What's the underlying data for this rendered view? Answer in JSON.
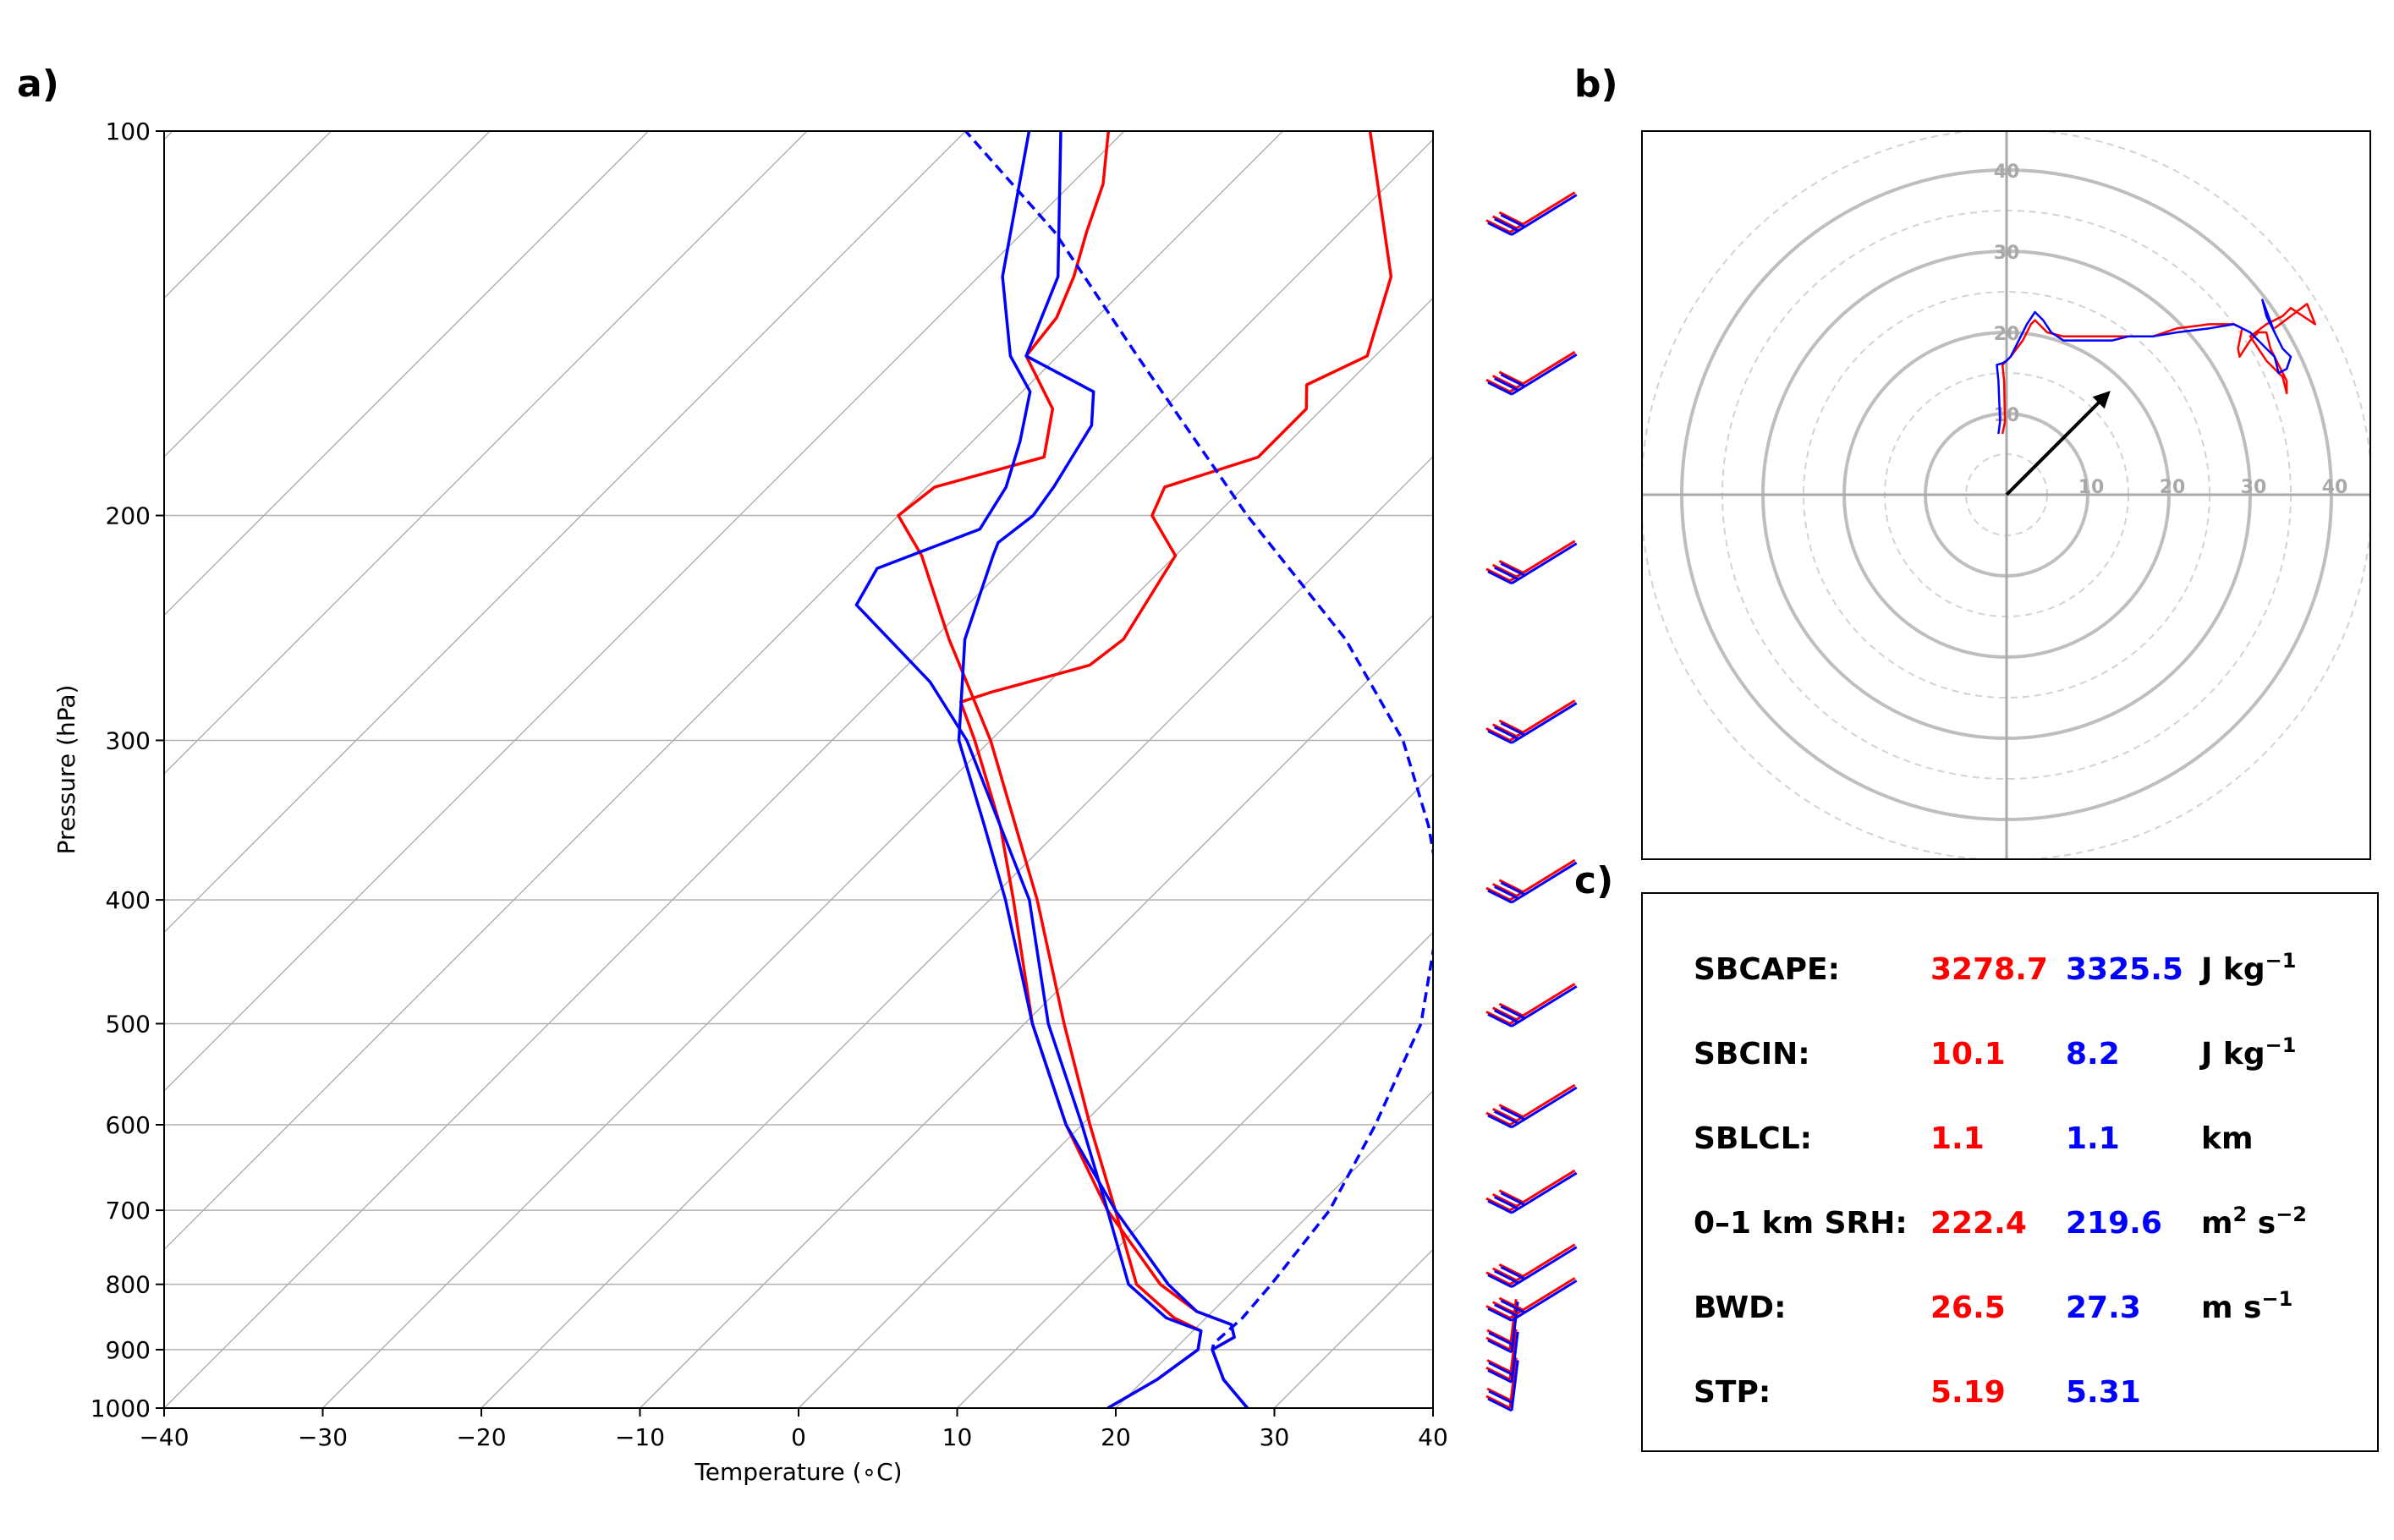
{
  "panels": {
    "a": "a)",
    "b": "b)",
    "c": "c)"
  },
  "colors": {
    "red": "#ff0000",
    "blue": "#0000ff",
    "grid": "#b0b0b0",
    "hodo_grid": "#a9a9a9"
  },
  "chart_data": [
    {
      "type": "line",
      "subtype": "skew-T log-p",
      "panel": "a)",
      "xlabel": "Temperature (∘C)",
      "ylabel": "Pressure (hPa)",
      "xlim": [
        -40,
        40
      ],
      "ylim": [
        1000,
        100
      ],
      "y_scale": "log",
      "x_ticks": [
        -40,
        -30,
        -20,
        -10,
        0,
        10,
        20,
        30,
        40
      ],
      "x_tick_labels": [
        "−40",
        "−30",
        "−20",
        "−10",
        "0",
        "10",
        "20",
        "30",
        "40"
      ],
      "y_ticks": [
        1000,
        900,
        800,
        700,
        600,
        500,
        400,
        300,
        200,
        100
      ],
      "y_tick_labels": [
        "1000",
        "900",
        "800",
        "700",
        "600",
        "500",
        "400",
        "300",
        "200",
        "100"
      ],
      "grid": true,
      "skew_degrees": 45,
      "series": [
        {
          "color": "#ff0000",
          "style": "solid",
          "values": [
            [
              1000,
              28.3
            ],
            [
              950,
              25.0
            ],
            [
              900,
              22.4
            ],
            [
              880,
              23.0
            ],
            [
              860,
              22.0
            ],
            [
              840,
              19.0
            ],
            [
              800,
              15.0
            ],
            [
              700,
              7.0
            ],
            [
              600,
              -1.0
            ],
            [
              500,
              -9.5
            ],
            [
              400,
              -18.5
            ],
            [
              350,
              -24.0
            ],
            [
              300,
              -31.0
            ],
            [
              280,
              -34.3
            ],
            [
              275,
              -33.0
            ],
            [
              262,
              -28.5
            ],
            [
              250,
              -28.0
            ],
            [
              215,
              -30.0
            ],
            [
              200,
              -34.0
            ],
            [
              190,
              -35.0
            ],
            [
              180,
              -31.0
            ],
            [
              165,
              -31.0
            ],
            [
              158,
              -32.5
            ],
            [
              150,
              -30.5
            ],
            [
              130,
              -34.0
            ],
            [
              100,
              -44.5
            ]
          ]
        },
        {
          "color": "#ff0000",
          "style": "solid",
          "values": [
            [
              1000,
              19.5
            ],
            [
              950,
              20.8
            ],
            [
              900,
              21.5
            ],
            [
              870,
              20.5
            ],
            [
              850,
              18.0
            ],
            [
              800,
              13.5
            ],
            [
              700,
              7.5
            ],
            [
              600,
              0.5
            ],
            [
              500,
              -7.5
            ],
            [
              400,
              -17.0
            ],
            [
              300,
              -30.0
            ],
            [
              250,
              -39.0
            ],
            [
              215,
              -46.0
            ],
            [
              200,
              -50.0
            ],
            [
              190,
              -49.5
            ],
            [
              180,
              -44.5
            ],
            [
              165,
              -47.0
            ],
            [
              150,
              -52.0
            ],
            [
              140,
              -52.5
            ],
            [
              130,
              -54.0
            ],
            [
              120,
              -56.0
            ],
            [
              110,
              -58.0
            ],
            [
              100,
              -61.0
            ]
          ]
        },
        {
          "color": "#0000ff",
          "style": "solid",
          "values": [
            [
              1000,
              28.3
            ],
            [
              950,
              25.0
            ],
            [
              900,
              22.4
            ],
            [
              880,
              23.0
            ],
            [
              860,
              22.0
            ],
            [
              840,
              19.0
            ],
            [
              800,
              15.5
            ],
            [
              700,
              7.5
            ],
            [
              600,
              -1.0
            ],
            [
              500,
              -9.5
            ],
            [
              400,
              -19.0
            ],
            [
              350,
              -25.0
            ],
            [
              300,
              -32.0
            ],
            [
              250,
              -38.0
            ],
            [
              215,
              -41.5
            ],
            [
              210,
              -42.0
            ],
            [
              200,
              -41.5
            ],
            [
              190,
              -42.0
            ],
            [
              170,
              -43.5
            ],
            [
              160,
              -45.5
            ],
            [
              150,
              -52.0
            ],
            [
              130,
              -55.0
            ],
            [
              100,
              -64.0
            ]
          ]
        },
        {
          "color": "#0000ff",
          "style": "solid",
          "values": [
            [
              1000,
              19.5
            ],
            [
              950,
              20.8
            ],
            [
              900,
              21.5
            ],
            [
              870,
              20.5
            ],
            [
              850,
              17.5
            ],
            [
              800,
              13.0
            ],
            [
              700,
              7.0
            ],
            [
              600,
              0.0
            ],
            [
              500,
              -8.5
            ],
            [
              400,
              -17.5
            ],
            [
              300,
              -31.5
            ],
            [
              270,
              -37.5
            ],
            [
              235,
              -47.0
            ],
            [
              220,
              -48.0
            ],
            [
              205,
              -44.0
            ],
            [
              190,
              -45.0
            ],
            [
              175,
              -47.0
            ],
            [
              160,
              -49.5
            ],
            [
              150,
              -53.0
            ],
            [
              130,
              -58.5
            ],
            [
              100,
              -66.0
            ]
          ]
        },
        {
          "color": "#0000ff",
          "style": "dashed",
          "values": [
            [
              1000,
              28.3
            ],
            [
              950,
              25.0
            ],
            [
              900,
              22.4
            ],
            [
              890,
              22.1
            ],
            [
              850,
              22.3
            ],
            [
              800,
              22.0
            ],
            [
              700,
              21.0
            ],
            [
              600,
              18.5
            ],
            [
              500,
              15.0
            ],
            [
              400,
              8.5
            ],
            [
              350,
              3.0
            ],
            [
              300,
              -4.0
            ],
            [
              250,
              -14.0
            ],
            [
              200,
              -28.0
            ],
            [
              150,
              -45.0
            ],
            [
              120,
              -58.0
            ],
            [
              100,
              -70.0
            ]
          ]
        }
      ],
      "wind_barbs": {
        "colors": [
          "#ff0000",
          "#0000ff"
        ],
        "pressures": [
          1000,
          950,
          900,
          850,
          800,
          700,
          600,
          500,
          400,
          300,
          225,
          160,
          120
        ]
      }
    },
    {
      "type": "line",
      "subtype": "hodograph",
      "panel": "b)",
      "ring_labels": [
        "10",
        "20",
        "30",
        "40"
      ],
      "rings": [
        10,
        20,
        30,
        40
      ],
      "grid": true,
      "series": [
        {
          "color": "#ff0000",
          "values": [
            [
              -0.5,
              7.5
            ],
            [
              -0.2,
              9.0
            ],
            [
              -0.3,
              14.0
            ],
            [
              -0.5,
              16.0
            ],
            [
              0,
              16.5
            ],
            [
              0.5,
              17.0
            ],
            [
              2,
              19.0
            ],
            [
              3,
              21.0
            ],
            [
              3.5,
              21.5
            ],
            [
              4,
              21.0
            ],
            [
              5,
              20.0
            ],
            [
              7,
              19.5
            ],
            [
              10,
              19.5
            ],
            [
              13,
              19.5
            ],
            [
              15,
              19.5
            ],
            [
              18,
              19.5
            ],
            [
              21,
              20.5
            ],
            [
              25,
              21.0
            ],
            [
              28,
              21.0
            ],
            [
              29,
              20.5
            ],
            [
              28.5,
              18.0
            ],
            [
              28.7,
              17.0
            ],
            [
              30,
              19.0
            ],
            [
              31,
              20.0
            ],
            [
              32,
              20.0
            ],
            [
              32.5,
              18.0
            ],
            [
              33.5,
              16.0
            ],
            [
              34.5,
              14.0
            ],
            [
              34.5,
              12.5
            ],
            [
              34,
              14.5
            ],
            [
              32,
              16.5
            ],
            [
              31,
              18.0
            ],
            [
              30,
              19.5
            ],
            [
              32,
              21.0
            ],
            [
              34,
              22.0
            ],
            [
              35,
              23.0
            ],
            [
              38,
              21.0
            ],
            [
              37,
              23.5
            ],
            [
              33,
              20.5
            ]
          ]
        },
        {
          "color": "#0000ff",
          "values": [
            [
              -1,
              7.5
            ],
            [
              -0.8,
              9.0
            ],
            [
              -1,
              14.0
            ],
            [
              -1.2,
              16.0
            ],
            [
              -0.5,
              16.2
            ],
            [
              0,
              16.5
            ],
            [
              0.5,
              17.0
            ],
            [
              1.5,
              19.0
            ],
            [
              2.5,
              21.0
            ],
            [
              3.5,
              22.5
            ],
            [
              4.5,
              21.5
            ],
            [
              5.5,
              20.0
            ],
            [
              7,
              19.0
            ],
            [
              10,
              19.0
            ],
            [
              13,
              19.0
            ],
            [
              15,
              19.5
            ],
            [
              18,
              19.5
            ],
            [
              21,
              20.0
            ],
            [
              25,
              20.5
            ],
            [
              28,
              21.0
            ],
            [
              30,
              20.0
            ],
            [
              32,
              18.0
            ],
            [
              33,
              17.0
            ],
            [
              33.5,
              15.0
            ],
            [
              34.5,
              15.5
            ],
            [
              35,
              17.0
            ],
            [
              34,
              18.0
            ],
            [
              33,
              20.0
            ],
            [
              32,
              22.0
            ],
            [
              31.5,
              24.0
            ],
            [
              33,
              20.0
            ]
          ]
        }
      ],
      "mean_motion_arrow": {
        "u": 12.5,
        "v": 12.5,
        "color": "#000000"
      }
    }
  ],
  "table": {
    "panel": "c)",
    "rows": [
      {
        "label": "SBCAPE:",
        "red": "3278.7",
        "blue": "3325.5",
        "unit": "J kg",
        "unit_sup": "−1"
      },
      {
        "label": "SBCIN:",
        "red": "10.1",
        "blue": "8.2",
        "unit": "J kg",
        "unit_sup": "−1"
      },
      {
        "label": "SBLCL:",
        "red": "1.1",
        "blue": "1.1",
        "unit": "km",
        "unit_sup": ""
      },
      {
        "label": "0–1 km SRH:",
        "red": "222.4",
        "blue": "219.6",
        "unit": "m",
        "unit_sup": "2",
        "unit2": " s",
        "unit2_sup": "−2"
      },
      {
        "label": "BWD:",
        "red": "26.5",
        "blue": "27.3",
        "unit": "m s",
        "unit_sup": "−1"
      },
      {
        "label": "STP:",
        "red": "5.19",
        "blue": "5.31",
        "unit": "",
        "unit_sup": ""
      }
    ]
  }
}
